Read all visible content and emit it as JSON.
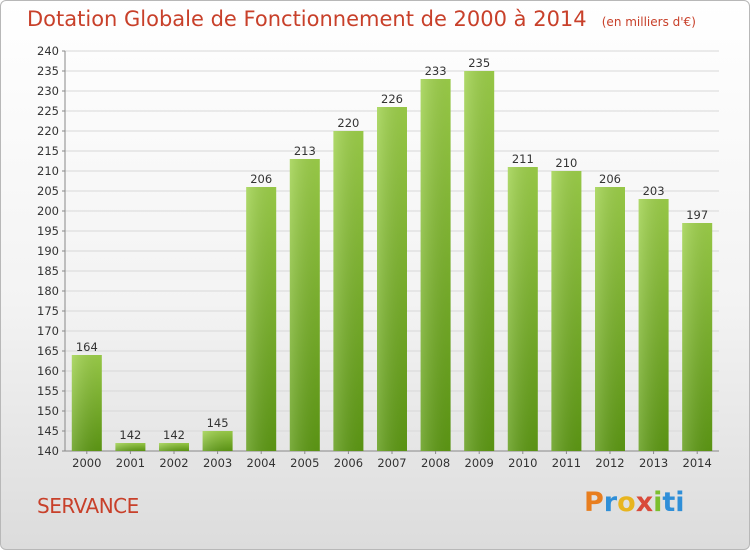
{
  "title": "Dotation Globale de Fonctionnement de 2000 à 2014",
  "unit": "(en milliers d'€)",
  "commune": "SERVANCE",
  "logo": "Proxiti",
  "chart_data": {
    "type": "bar",
    "title": "Dotation Globale de Fonctionnement de 2000 à 2014",
    "subtitle": "(en milliers d'€)",
    "xlabel": "",
    "ylabel": "",
    "categories": [
      "2000",
      "2001",
      "2002",
      "2003",
      "2004",
      "2005",
      "2006",
      "2007",
      "2008",
      "2009",
      "2010",
      "2011",
      "2012",
      "2013",
      "2014"
    ],
    "values": [
      164,
      142,
      142,
      145,
      206,
      213,
      220,
      226,
      233,
      235,
      211,
      210,
      206,
      203,
      197
    ],
    "ylim": [
      140,
      240
    ],
    "ytick_step": 5,
    "grid": true,
    "bar_color": "#7db52a"
  }
}
